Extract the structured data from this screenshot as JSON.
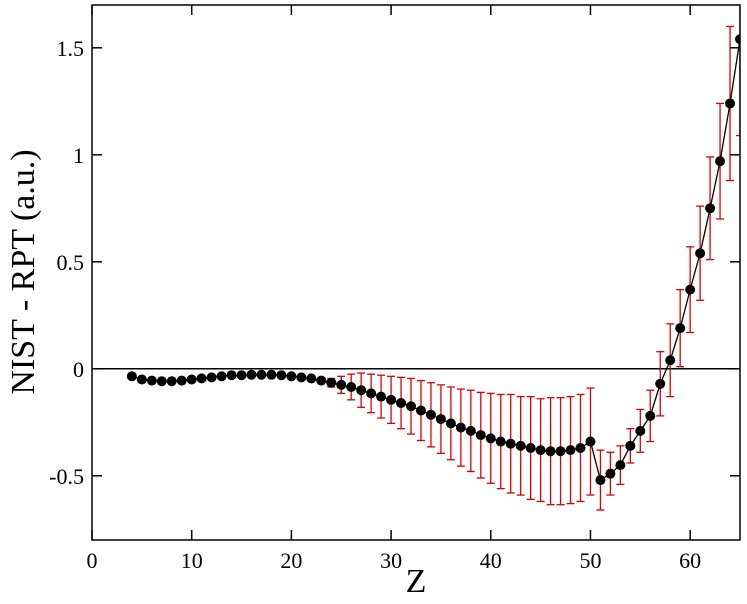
{
  "chart_data": {
    "type": "line",
    "xlabel": "Z",
    "ylabel": "NIST - RPT (a.u.)",
    "xlim": [
      0,
      65
    ],
    "ylim": [
      -0.8,
      1.7
    ],
    "xticks": [
      0,
      10,
      20,
      30,
      40,
      50,
      60
    ],
    "yticks": [
      -0.5,
      0,
      0.5,
      1,
      1.5
    ],
    "hline": 0,
    "x": [
      4,
      5,
      6,
      7,
      8,
      9,
      10,
      11,
      12,
      13,
      14,
      15,
      16,
      17,
      18,
      19,
      20,
      21,
      22,
      23,
      24,
      25,
      26,
      27,
      28,
      29,
      30,
      31,
      32,
      33,
      34,
      35,
      36,
      37,
      38,
      39,
      40,
      41,
      42,
      43,
      44,
      45,
      46,
      47,
      48,
      49,
      50,
      51,
      52,
      53,
      54,
      55,
      56,
      57,
      58,
      59,
      60,
      61,
      62,
      63,
      64,
      65
    ],
    "series": [
      {
        "color": "#000000",
        "error_color": "#e00000",
        "values": [
          -0.035,
          -0.05,
          -0.055,
          -0.058,
          -0.058,
          -0.055,
          -0.05,
          -0.045,
          -0.04,
          -0.035,
          -0.03,
          -0.03,
          -0.028,
          -0.028,
          -0.028,
          -0.03,
          -0.035,
          -0.04,
          -0.045,
          -0.055,
          -0.065,
          -0.075,
          -0.085,
          -0.1,
          -0.115,
          -0.13,
          -0.145,
          -0.16,
          -0.175,
          -0.195,
          -0.215,
          -0.235,
          -0.255,
          -0.275,
          -0.29,
          -0.31,
          -0.325,
          -0.34,
          -0.35,
          -0.36,
          -0.37,
          -0.38,
          -0.385,
          -0.385,
          -0.38,
          -0.37,
          -0.34,
          -0.52,
          -0.49,
          -0.45,
          -0.36,
          -0.29,
          -0.22,
          -0.07,
          0.04,
          0.19,
          0.37,
          0.54,
          0.75,
          0.97,
          1.24,
          1.54
        ],
        "errors": [
          null,
          null,
          null,
          null,
          null,
          null,
          null,
          null,
          null,
          null,
          null,
          null,
          null,
          null,
          null,
          null,
          null,
          null,
          null,
          0.01,
          0.02,
          0.04,
          0.06,
          0.08,
          0.09,
          0.1,
          0.11,
          0.12,
          0.13,
          0.14,
          0.15,
          0.16,
          0.17,
          0.18,
          0.19,
          0.2,
          0.21,
          0.22,
          0.23,
          0.23,
          0.24,
          0.24,
          0.25,
          0.25,
          0.25,
          0.25,
          0.25,
          0.14,
          0.1,
          0.09,
          0.08,
          0.1,
          0.12,
          0.15,
          0.17,
          0.18,
          0.2,
          0.22,
          0.24,
          0.27,
          0.36,
          0.45
        ]
      }
    ]
  }
}
